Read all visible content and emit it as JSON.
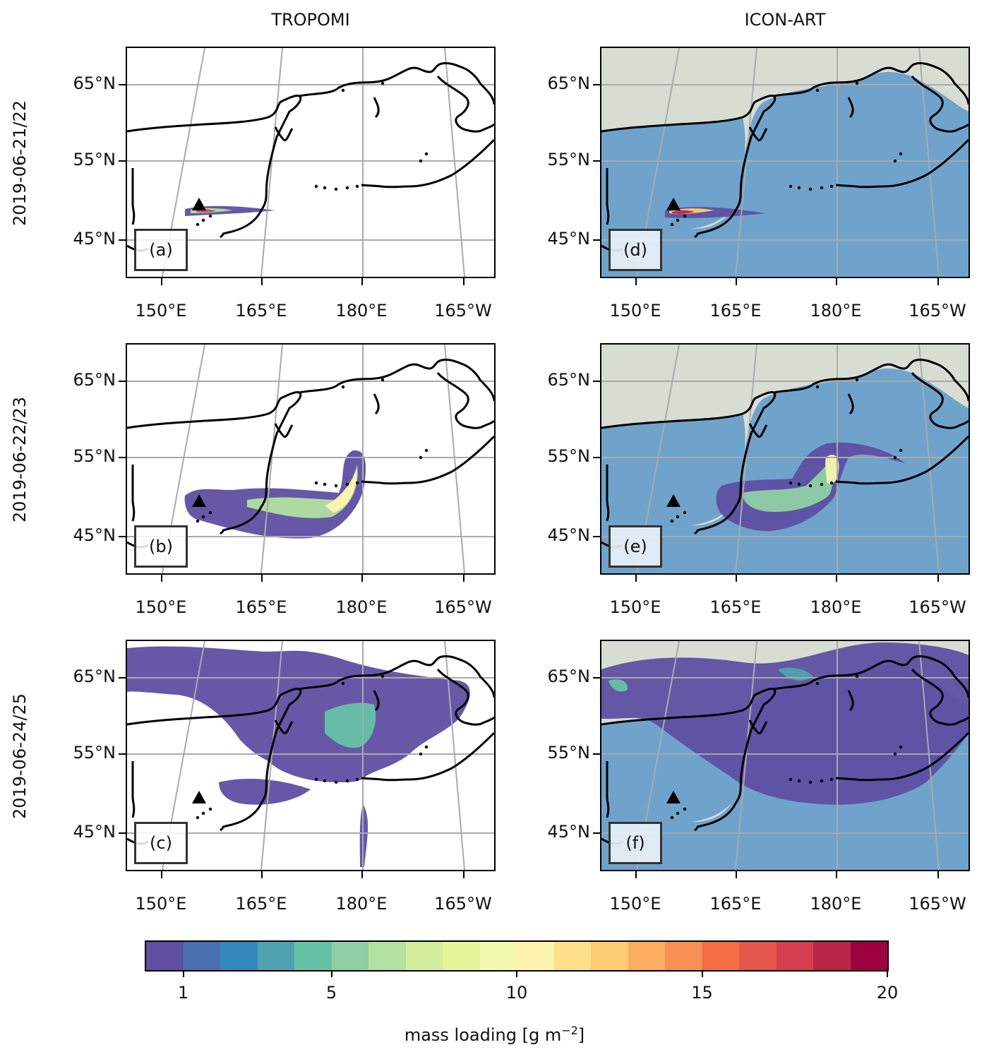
{
  "columns": [
    "TROPOMI",
    "ICON-ART"
  ],
  "rows": [
    "2019-06-21/22",
    "2019-06-22/23",
    "2019-06-24/25"
  ],
  "panels": [
    {
      "tag": "(a)",
      "source": "TROPOMI",
      "date": "2019-06-21/22"
    },
    {
      "tag": "(d)",
      "source": "ICON-ART",
      "date": "2019-06-21/22"
    },
    {
      "tag": "(b)",
      "source": "TROPOMI",
      "date": "2019-06-22/23"
    },
    {
      "tag": "(e)",
      "source": "ICON-ART",
      "date": "2019-06-22/23"
    },
    {
      "tag": "(c)",
      "source": "TROPOMI",
      "date": "2019-06-24/25"
    },
    {
      "tag": "(f)",
      "source": "ICON-ART",
      "date": "2019-06-24/25"
    }
  ],
  "axes": {
    "lat_ticks": [
      "65°N",
      "55°N",
      "45°N"
    ],
    "lon_ticks": [
      "150°E",
      "165°E",
      "180°E",
      "165°W"
    ]
  },
  "colorbar": {
    "label_prefix": "mass loading [g m",
    "label_exponent": "−2",
    "label_suffix": "]",
    "ticks": [
      "1",
      "5",
      "10",
      "15",
      "20"
    ],
    "colors": [
      "#5e4fa2",
      "#4a6fb0",
      "#3288bd",
      "#4fa3b0",
      "#66c2a5",
      "#8fd0a4",
      "#b2e0a0",
      "#d3ed9c",
      "#e6f598",
      "#f4fbb0",
      "#fff5b0",
      "#fee08b",
      "#fdcb74",
      "#fdae61",
      "#f88f53",
      "#f46d43",
      "#e4564a",
      "#d53e4f",
      "#b82648",
      "#9e0142"
    ],
    "range": [
      0,
      20
    ]
  },
  "volcano_marker": "black-triangle-icon",
  "colors": {
    "ocean": "#6fa3cc",
    "land": "#d8ddd4",
    "gridline": "#aaaaaa"
  }
}
